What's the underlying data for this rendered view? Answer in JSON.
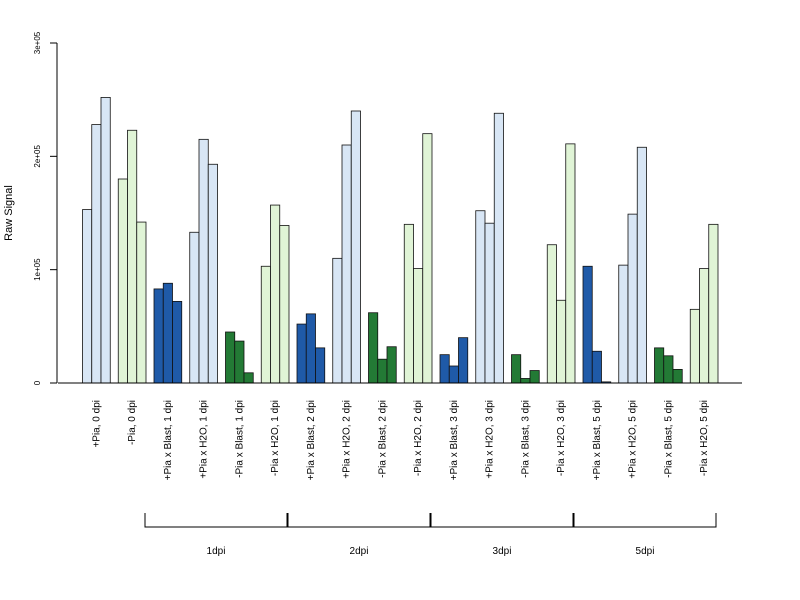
{
  "chart_data": {
    "type": "bar",
    "ylabel": "Raw Signal",
    "yticks": [
      {
        "value": 0,
        "label": "0"
      },
      {
        "value": 100000,
        "label": "1e+05"
      },
      {
        "value": 200000,
        "label": "2e+05"
      },
      {
        "value": 300000,
        "label": "3e+05"
      }
    ],
    "ylim": [
      0,
      300000
    ],
    "colors": {
      "blue_dark": "#1f5aa8",
      "blue_light": "#d8e6f5",
      "green_dark": "#237a35",
      "green_light": "#e0f4d6",
      "border": "#111111"
    },
    "groups": [
      {
        "label": "+Pia, 0 dpi",
        "color": "blue_light",
        "values": [
          153000,
          228000,
          252000
        ]
      },
      {
        "label": "-Pia, 0 dpi",
        "color": "green_light",
        "values": [
          180000,
          223000,
          142000
        ]
      },
      {
        "label": "+Pia x Blast, 1 dpi",
        "color": "blue_dark",
        "values": [
          83000,
          88000,
          72000
        ]
      },
      {
        "label": "+Pia x H2O, 1 dpi",
        "color": "blue_light",
        "values": [
          133000,
          215000,
          193000
        ]
      },
      {
        "label": "-Pia x Blast, 1 dpi",
        "color": "green_dark",
        "values": [
          45000,
          37000,
          9000
        ]
      },
      {
        "label": "-Pia x H2O, 1 dpi",
        "color": "green_light",
        "values": [
          103000,
          157000,
          139000
        ]
      },
      {
        "label": "+Pia x Blast, 2 dpi",
        "color": "blue_dark",
        "values": [
          52000,
          61000,
          31000
        ]
      },
      {
        "label": "+Pia x H2O, 2 dpi",
        "color": "blue_light",
        "values": [
          110000,
          210000,
          240000
        ]
      },
      {
        "label": "-Pia x Blast, 2 dpi",
        "color": "green_dark",
        "values": [
          62000,
          21000,
          32000
        ]
      },
      {
        "label": "-Pia x H2O, 2 dpi",
        "color": "green_light",
        "values": [
          140000,
          101000,
          220000
        ]
      },
      {
        "label": "+Pia x Blast, 3 dpi",
        "color": "blue_dark",
        "values": [
          25000,
          15000,
          40000
        ]
      },
      {
        "label": "+Pia x H2O, 3 dpi",
        "color": "blue_light",
        "values": [
          152000,
          141000,
          238000
        ]
      },
      {
        "label": "-Pia x Blast, 3 dpi",
        "color": "green_dark",
        "values": [
          25000,
          4000,
          11000
        ]
      },
      {
        "label": "-Pia x H2O, 3 dpi",
        "color": "green_light",
        "values": [
          122000,
          73000,
          211000
        ]
      },
      {
        "label": "+Pia x Blast, 5 dpi",
        "color": "blue_dark",
        "values": [
          103000,
          28000,
          1000
        ]
      },
      {
        "label": "+Pia x H2O, 5 dpi",
        "color": "blue_light",
        "values": [
          104000,
          149000,
          208000
        ]
      },
      {
        "label": "-Pia x Blast, 5 dpi",
        "color": "green_dark",
        "values": [
          31000,
          24000,
          12000
        ]
      },
      {
        "label": "-Pia x H2O, 5 dpi",
        "color": "green_light",
        "values": [
          65000,
          101000,
          140000
        ]
      }
    ],
    "brackets": [
      {
        "label": "1dpi",
        "from_group": 2,
        "to_group": 5
      },
      {
        "label": "2dpi",
        "from_group": 6,
        "to_group": 9
      },
      {
        "label": "3dpi",
        "from_group": 10,
        "to_group": 13
      },
      {
        "label": "5dpi",
        "from_group": 14,
        "to_group": 17
      }
    ]
  }
}
